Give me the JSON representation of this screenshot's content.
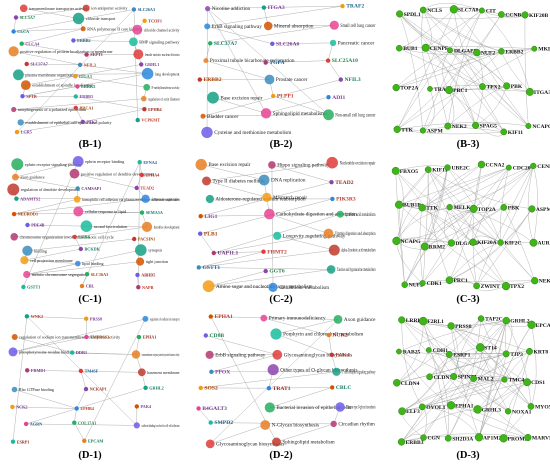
{
  "panels": [
    {
      "id": "B-1",
      "caption": "(B-1)",
      "style": "go",
      "labels": [
        "transmembrane transporter activity",
        "ion antiporter activity",
        "SLC26A3",
        "SLC5A7",
        "chloride transport",
        "TCOF1",
        "CLCA",
        "RNA polymerase II core binding",
        "chloride channel activity",
        "CLCA4",
        "ERBB2",
        "BMP signaling pathway",
        "positive regulation of protein localization to membrane",
        "SEPT1",
        "female meiotic nuclear division",
        "SLC37A7",
        "NFIL3",
        "GRHL1",
        "plasma membrane organization",
        "ITGA3",
        "lung development",
        "establishment of spindle localization",
        "LRRK2",
        "N-methyltransferase activity",
        "SPTB",
        "ERBB3",
        "regulation of actin filament",
        "morphogenesis of a polarized epithelium",
        "BRCA1",
        "EPHB4",
        "establishment of epithelial cell apical/basal polarity",
        "PTK7",
        "VCPKMT",
        "LGR5"
      ]
    },
    {
      "id": "B-2",
      "caption": "(B-2)",
      "style": "kegg",
      "labels": [
        "Nicotine addiction",
        "ITGA3",
        "TRAF2",
        "ErbB signaling pathway",
        "Mineral absorption",
        "Small cell lung cancer",
        "SLC37A7",
        "SLC26A6",
        "Pancreatic cancer",
        "Proximal tubule bicarbonate reclamation",
        "TGFA",
        "SLC25A10",
        "ERBB2",
        "Prostate cancer",
        "NFIL3",
        "Base excision repair",
        "PLPP1",
        "ADI1",
        "Bladder cancer",
        "Sphingolipid metabolism",
        "Non-small cell lung cancer",
        "Cysteine and methionine metabolism"
      ]
    },
    {
      "id": "B-3",
      "caption": "(B-3)",
      "style": "ppi",
      "labels": [
        "SPDL1",
        "NCLS",
        "SLC7A8",
        "CIT",
        "CCNB1",
        "KIF20B",
        "BUB1",
        "CENPF",
        "DLGAP5",
        "NUF2",
        "ERBB2",
        "MKI67",
        "TOP2A",
        "TRAF2",
        "PRC1",
        "TPX2",
        "PBK",
        "ITGA3",
        "TTK",
        "ASPM",
        "NEK2",
        "SPAG5",
        "KIF11",
        "NCAPG"
      ]
    },
    {
      "id": "C-1",
      "caption": "(C-1)",
      "style": "go",
      "labels": [
        "ephrin receptor signaling pathway",
        "ephrin receptor binding",
        "EFNA4",
        "axon guidance",
        "positive regulation of dendrite development",
        "EPHA4",
        "regulation of dendrite development",
        "CAMSAP1",
        "TEAD2",
        "ADAMTS2",
        "homophilic cell adhesion via plasma membrane adhesion molecules",
        "chromosome organization",
        "NEUROD1",
        "cellular response to lipid",
        "SEMA5A",
        "PDE4B",
        "axonal fasciculation",
        "dendrite development",
        "chromosome organization involved in meiotic cell cycle",
        "LHX6",
        "PACSIN1",
        "binding",
        "BCKDK",
        "synapsis",
        "cell projection membrane",
        "lipid binding",
        "tight junction",
        "meiotic chromosome segregation",
        "SLC16A3",
        "ABHD5",
        "GSTT1",
        "CBL",
        "NAPB"
      ]
    },
    {
      "id": "C-2",
      "caption": "(C-2)",
      "style": "kegg",
      "labels": [
        "Base excision repair",
        "Hippo signaling pathway",
        "Nucleotide excision repair",
        "Type II diabetes mellitus",
        "DNA replication",
        "TEAD2",
        "Aldosterone-regulated sodium reabsorption",
        "Mismatch repair",
        "PIK3R3",
        "LIG1",
        "Carbohydrate digestion and absorption",
        "Linoleic acid metabolism",
        "PLB1",
        "Longevity regulating pathway",
        "Vitamin digestion and absorption",
        "UAP1L1",
        "FHMT2",
        "alpha-Linolenic acid metabolism",
        "GSTT1",
        "GGT6",
        "Taurine and hypotaurine metabolism",
        "Amino sugar and nucleotide sugar metabolism",
        "Glutathione metabolism"
      ]
    },
    {
      "id": "C-3",
      "caption": "(C-3)",
      "style": "ppi",
      "labels": [
        "FBXO5",
        "KIF11",
        "UBE2C",
        "CCNA2",
        "CDC20",
        "CENPF",
        "BUB1B",
        "TTK",
        "MELK",
        "TOP2A",
        "PBK",
        "ASPM",
        "NCAPG",
        "RRM2",
        "DLGAP5",
        "KIF20A",
        "KIF2C",
        "AURKA",
        "NUF2",
        "CDK1",
        "PRC1",
        "ZWINT",
        "TPX2",
        "NEK2"
      ]
    },
    {
      "id": "D-1",
      "caption": "(D-1)",
      "style": "go",
      "labels": [
        "WNK2",
        "PRSS8",
        "regulation of sodium ion transport",
        "regulation of sodium ion transmembrane transporter activity",
        "TMPRSS2",
        "EPHA1",
        "phosphotyrosine residue binding",
        "DDR1",
        "transmembrane receptor protein tyrosine kinase activity",
        "FRMD1",
        "TM4SF",
        "basement membrane",
        "Rho GTPase binding",
        "NCKAP1",
        "GRHL2",
        "NCK2",
        "EPHB4",
        "PAK4",
        "AGRN",
        "COL17A1",
        "cadherin binding involved in cell-cell adhesion",
        "ESRP1",
        "EPCAM"
      ]
    },
    {
      "id": "D-2",
      "caption": "(D-2)",
      "style": "kegg",
      "labels": [
        "EPHA1",
        "Primary immunodeficiency",
        "Axon guidance",
        "CD8B",
        "Porphyrin and chlorophyll metabolism",
        "NCK2",
        "ErbB signaling pathway",
        "Glycosaminoglycan biosynthesis",
        "PAK4",
        "PPOX",
        "Other types of O-glycan biosynthesis",
        "T cell receptor signaling pathway",
        "SOS2",
        "TRAT1",
        "CBLC",
        "B4GALT3",
        "Bacterial invasion of epithelial cells",
        "Mannose type O-glycan biosynthesis",
        "SMPD2",
        "N-Glycan biosynthesis",
        "Circadian rhythm",
        "Glycosaminoglycan biosynthesis",
        "Sphingolipid metabolism"
      ]
    },
    {
      "id": "D-3",
      "caption": "(D-3)",
      "style": "ppi",
      "labels": [
        "LRRK2",
        "F2RL1",
        "PRSS8",
        "TAP2C",
        "GRHL2",
        "EPCAM",
        "RAB25",
        "CDH1",
        "ESRP1",
        "ST14",
        "TJP3",
        "KRT8",
        "CLDN4",
        "CLDN7",
        "SPINT1",
        "MAL2",
        "TMC4",
        "CDS1",
        "ELF3",
        "OVOL1",
        "EPHA1",
        "GRHL3",
        "NOXA1",
        "MYO5B",
        "ERBB3",
        "CGN",
        "SH2D3A",
        "AP1M2",
        "PROM2",
        "MARVELD3"
      ]
    }
  ]
}
